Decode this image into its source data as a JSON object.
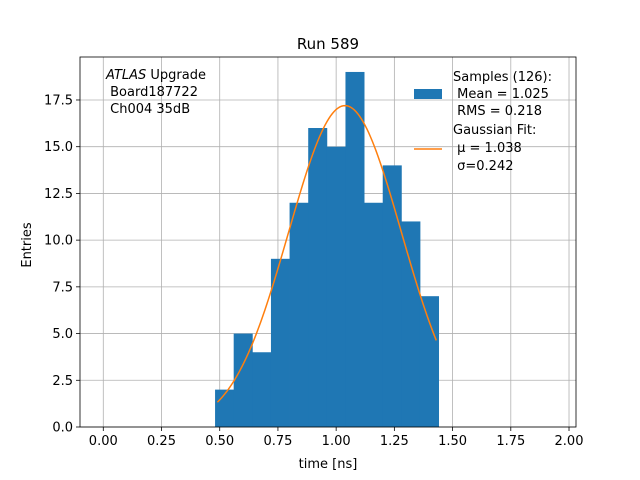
{
  "chart_data": {
    "type": "bar",
    "title": "Run 589",
    "xlabel": "time [ns]",
    "ylabel": "Entries",
    "xlim": [
      -0.1,
      2.03
    ],
    "ylim": [
      0,
      19.8
    ],
    "grid": true,
    "x_ticks": [
      0.0,
      0.25,
      0.5,
      0.75,
      1.0,
      1.25,
      1.5,
      1.75,
      2.0
    ],
    "x_tick_labels": [
      "0.00",
      "0.25",
      "0.50",
      "0.75",
      "1.00",
      "1.25",
      "1.50",
      "1.75",
      "2.00"
    ],
    "y_ticks": [
      0,
      2.5,
      5,
      7.5,
      10,
      12.5,
      15,
      17.5
    ],
    "y_tick_labels": [
      "0.0",
      "2.5",
      "5.0",
      "7.5",
      "10.0",
      "12.5",
      "15.0",
      "17.5"
    ],
    "annotation": {
      "lines": [
        {
          "italic": "ATLAS",
          "rest": " Upgrade"
        },
        {
          "italic": "",
          "rest": " Board187722"
        },
        {
          "italic": "",
          "rest": " Ch004 35dB"
        }
      ]
    },
    "histogram": {
      "bin_edges": [
        0.48,
        0.56,
        0.64,
        0.72,
        0.8,
        0.88,
        0.96,
        1.04,
        1.12,
        1.2,
        1.28,
        1.36,
        1.44
      ],
      "counts": [
        2,
        5,
        4,
        9,
        12,
        16,
        15,
        19,
        12,
        14,
        11,
        7
      ],
      "color": "#1f77b4",
      "legend_lines": [
        "Samples (126):",
        " Mean = 1.025",
        " RMS = 0.218"
      ]
    },
    "fit": {
      "type": "gaussian",
      "mu": 1.038,
      "sigma": 0.242,
      "amplitude": 17.2,
      "x_range": [
        0.49,
        1.43
      ],
      "color": "#ff7f0e",
      "legend_lines": [
        "Gaussian Fit:",
        " μ = 1.038",
        " σ=0.242"
      ]
    },
    "legend": {
      "placement": "top-right"
    }
  }
}
